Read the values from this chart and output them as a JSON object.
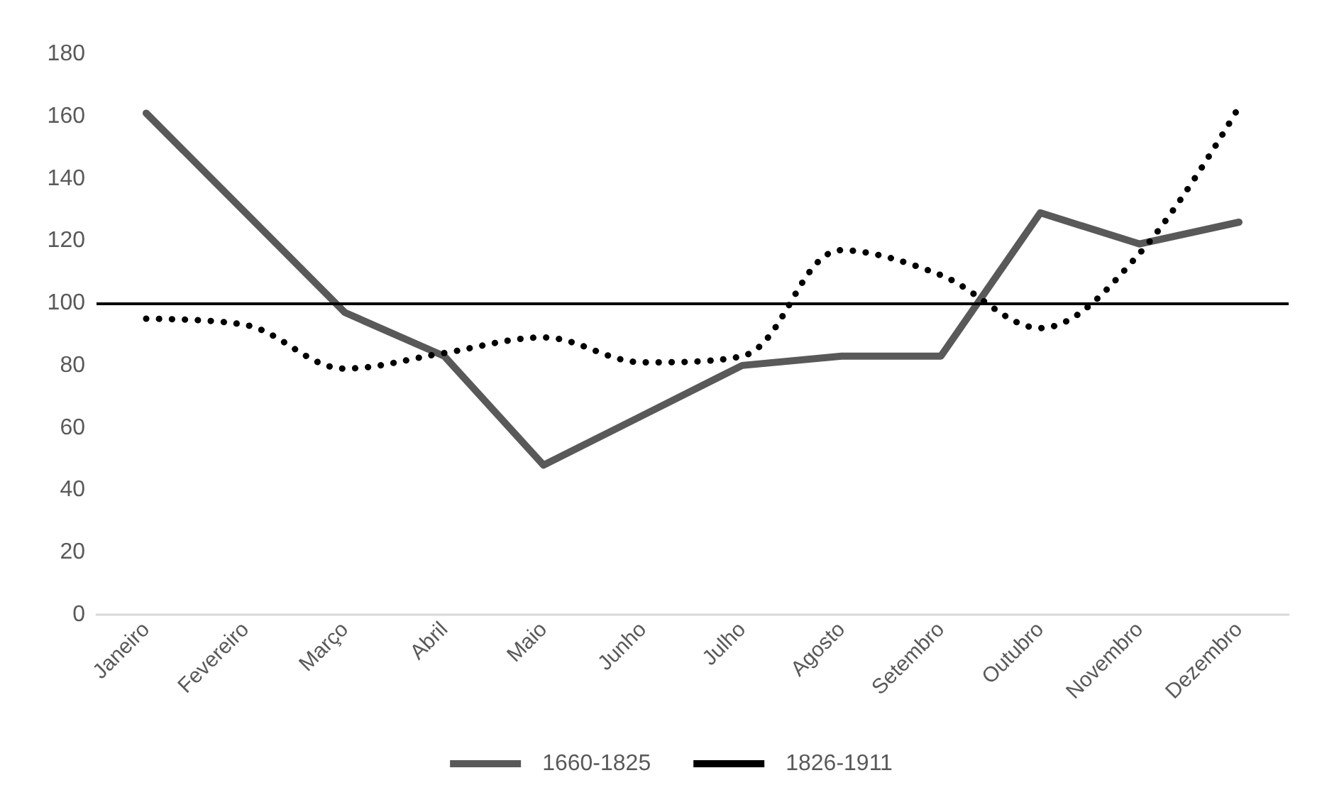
{
  "chart_data": {
    "type": "line",
    "categories": [
      "Janeiro",
      "Fevereiro",
      "Março",
      "Abril",
      "Maio",
      "Junho",
      "Julho",
      "Agosto",
      "Setembro",
      "Outubro",
      "Novembro",
      "Dezembro"
    ],
    "series": [
      {
        "name": "1660-1825",
        "color": "#595959",
        "line_style": "solid",
        "values": [
          161,
          129,
          97,
          83,
          48,
          64,
          80,
          83,
          83,
          129,
          119,
          126
        ]
      },
      {
        "name": "1826-1911",
        "color": "#000000",
        "line_style": "dotted",
        "values": [
          95,
          93,
          79,
          84,
          89,
          81,
          83,
          117,
          109,
          92,
          116,
          163
        ]
      }
    ],
    "ylim": [
      0,
      180
    ],
    "yticks": [
      0,
      20,
      40,
      60,
      80,
      100,
      120,
      140,
      160,
      180
    ],
    "grid": false,
    "legend": "bottom",
    "marker": "none",
    "ref_lines": [
      {
        "axis": "y",
        "value": 100,
        "color": "#000000"
      }
    ]
  }
}
